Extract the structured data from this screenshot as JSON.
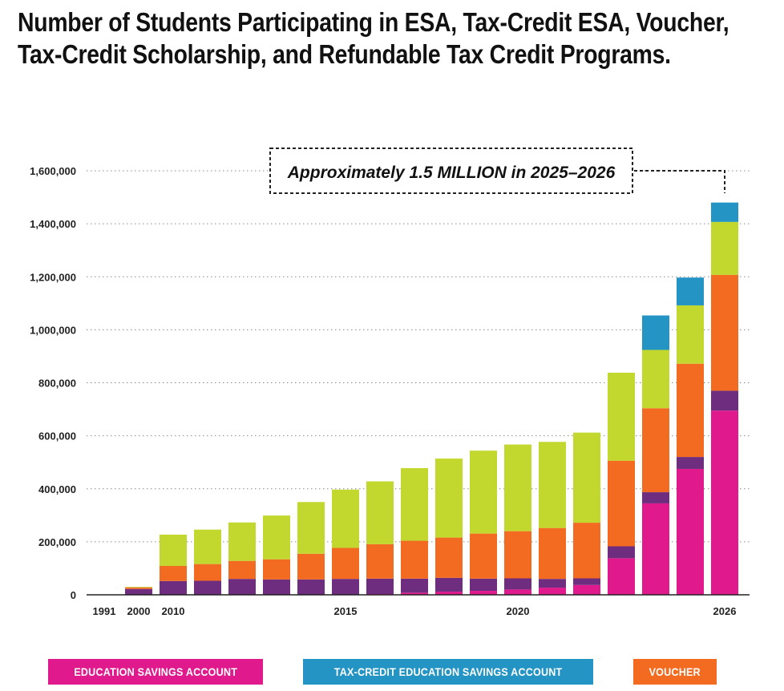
{
  "chart_data": {
    "type": "bar",
    "stacked": true,
    "title": "Number of Students Participating in ESA, Tax-Credit ESA, Voucher, Tax-Credit Scholarship, and Refundable Tax Credit Programs.",
    "annotation": "Approximately 1.5 MILLION in 2025–2026",
    "xlabel": "",
    "ylabel": "",
    "ylim": [
      0,
      1600000
    ],
    "yticks": [
      0,
      200000,
      400000,
      600000,
      800000,
      1000000,
      1200000,
      1400000,
      1600000
    ],
    "ytick_labels": [
      "0",
      "200,000",
      "400,000",
      "600,000",
      "800,000",
      "1,000,000",
      "1,200,000",
      "1,400,000",
      "1,600,000"
    ],
    "grid": "horizontal dotted",
    "legend_position": "bottom",
    "categories": [
      "1991",
      "2000",
      "2010",
      "2011",
      "2012",
      "2013",
      "2014",
      "2015",
      "2016",
      "2017",
      "2018",
      "2019",
      "2020",
      "2021",
      "2022",
      "2023",
      "2024",
      "2025",
      "2026"
    ],
    "xtick_labels": [
      "1991",
      "2000",
      "2010",
      "",
      "",
      "",
      "",
      "2015",
      "",
      "",
      "",
      "",
      "2020",
      "",
      "",
      "",
      "",
      "",
      "2026"
    ],
    "series": [
      {
        "name": "EDUCATION SAVINGS ACCOUNT",
        "color": "#E0198C",
        "values": [
          0,
          0,
          0,
          0,
          0,
          0,
          0,
          0,
          3000,
          8000,
          12000,
          15000,
          20000,
          27000,
          37000,
          138000,
          345000,
          475000,
          695000
        ]
      },
      {
        "name": "",
        "color": "#6E2D7F",
        "values": [
          0,
          22000,
          52000,
          53000,
          60000,
          58000,
          58000,
          60000,
          58000,
          53000,
          52000,
          46000,
          42000,
          33000,
          25000,
          45000,
          42000,
          45000,
          75000
        ]
      },
      {
        "name": "VOUCHER",
        "color": "#F26B21",
        "values": [
          0,
          6000,
          57000,
          63000,
          68000,
          76000,
          97000,
          117000,
          130000,
          143000,
          152000,
          170000,
          178000,
          192000,
          210000,
          323000,
          317000,
          352000,
          437000
        ]
      },
      {
        "name": "",
        "color": "#C2D82E",
        "values": [
          0,
          2000,
          118000,
          130000,
          145000,
          165000,
          195000,
          220000,
          237000,
          274000,
          298000,
          313000,
          327000,
          325000,
          340000,
          332000,
          220000,
          220000,
          200000
        ]
      },
      {
        "name": "TAX-CREDIT EDUCATION SAVINGS ACCOUNT",
        "color": "#2394C3",
        "values": [
          0,
          0,
          0,
          0,
          0,
          0,
          0,
          0,
          0,
          0,
          0,
          0,
          0,
          0,
          0,
          0,
          130000,
          105000,
          73000
        ]
      }
    ]
  },
  "legend": [
    {
      "label": "EDUCATION SAVINGS ACCOUNT",
      "color": "#E0198C"
    },
    {
      "label": "TAX-CREDIT EDUCATION SAVINGS ACCOUNT",
      "color": "#2394C3"
    },
    {
      "label": "VOUCHER",
      "color": "#F26B21"
    }
  ]
}
